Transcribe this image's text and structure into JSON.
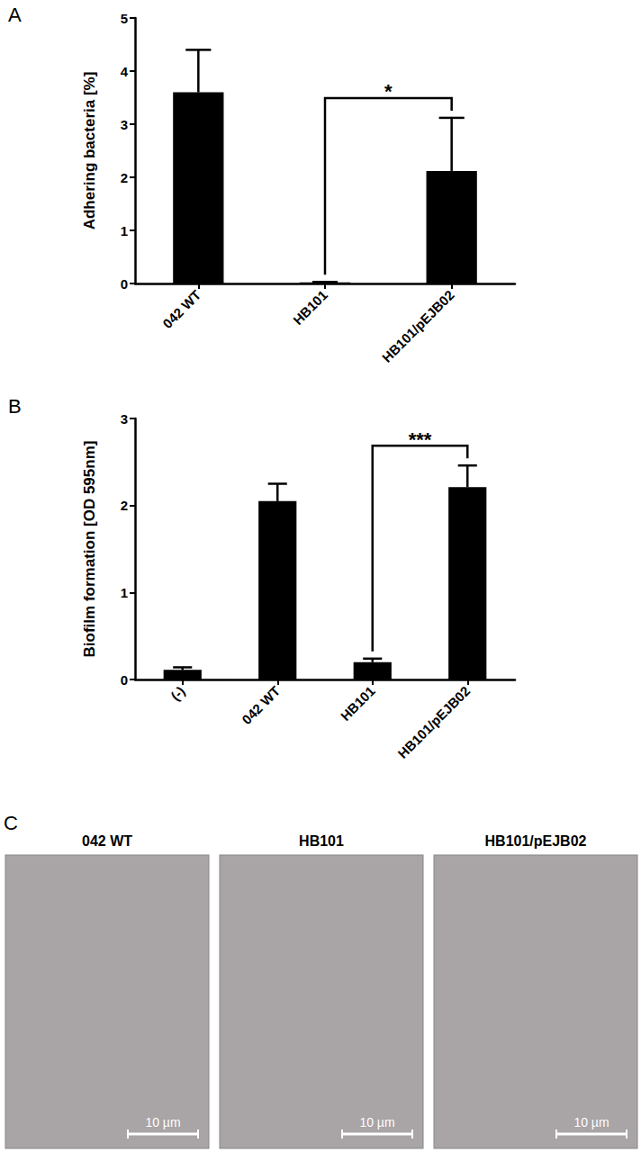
{
  "chart_data": [
    {
      "type": "bar",
      "title": "A",
      "ylabel": "Adhering bacteria [%]",
      "categories": [
        "042 WT",
        "HB101",
        "HB101/pEJB02"
      ],
      "values": [
        3.6,
        0.02,
        2.12
      ],
      "errors": [
        0.8,
        0.01,
        1.0
      ],
      "color": "#000000",
      "ylim": [
        0,
        5
      ],
      "yticks": [
        0,
        1,
        2,
        3,
        4,
        5
      ],
      "grid": false,
      "annotations": [
        {
          "text": "*",
          "from": "HB101",
          "to": "HB101/pEJB02"
        }
      ]
    },
    {
      "type": "bar",
      "title": "B",
      "ylabel": "Biofilm formation [OD 595nm]",
      "categories": [
        "(-)",
        "042 WT",
        "HB101",
        "HB101/pEJB02"
      ],
      "values": [
        0.11,
        2.05,
        0.2,
        2.21
      ],
      "errors": [
        0.03,
        0.2,
        0.04,
        0.25
      ],
      "color": "#000000",
      "ylim": [
        0,
        3
      ],
      "yticks": [
        0,
        1,
        2,
        3
      ],
      "grid": false,
      "annotations": [
        {
          "text": "***",
          "from": "HB101",
          "to": "HB101/pEJB02"
        }
      ]
    }
  ],
  "panel_c": {
    "label": "C",
    "images": [
      {
        "title": "042 WT",
        "scale_bar": "10 µm"
      },
      {
        "title": "HB101",
        "scale_bar": "10 µm"
      },
      {
        "title": "HB101/pEJB02",
        "scale_bar": "10 µm"
      }
    ]
  }
}
